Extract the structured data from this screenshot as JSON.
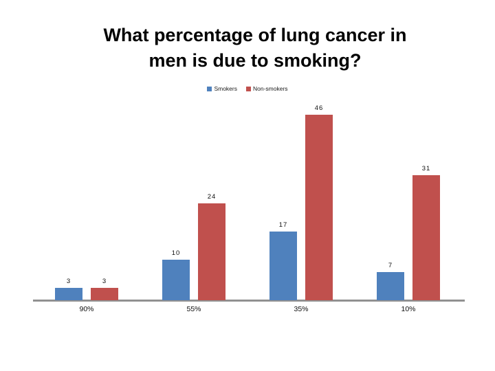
{
  "slide": {
    "background": "#ffffff"
  },
  "title": {
    "line1": "What percentage of lung cancer in",
    "line2": "men is due to smoking?",
    "color": "#000000"
  },
  "chart_data": {
    "type": "bar",
    "title": "What percentage of lung cancer in men is due to smoking?",
    "categories": [
      "90%",
      "55%",
      "35%",
      "10%"
    ],
    "series": [
      {
        "name": "Smokers",
        "color": "#4f81bd",
        "values": [
          3,
          10,
          17,
          7
        ]
      },
      {
        "name": "Non-smokers",
        "color": "#c0504d",
        "values": [
          3,
          24,
          46,
          31
        ]
      }
    ],
    "data_labels": [
      [
        "3",
        "3"
      ],
      [
        "10",
        "24"
      ],
      [
        "17",
        "46"
      ],
      [
        "7",
        "31"
      ]
    ],
    "legend_position": "top",
    "legend_labels": [
      "Smokers",
      "Non-smokers"
    ],
    "axis_line_color": "#919191",
    "ylim": [
      0,
      48
    ],
    "gridlines": false,
    "y_axis_visible": false
  }
}
